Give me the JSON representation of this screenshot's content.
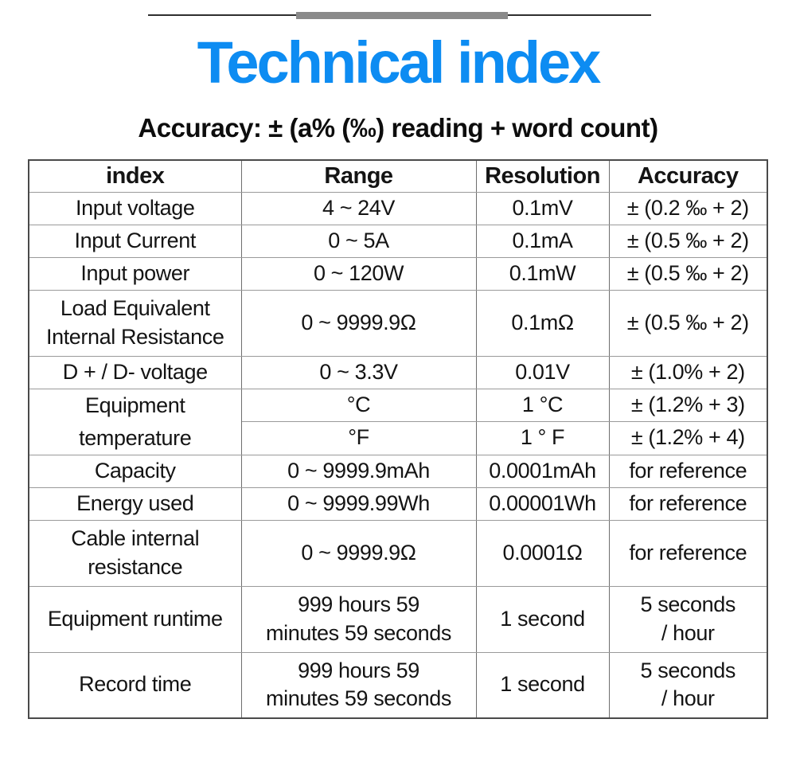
{
  "colors": {
    "title_blue": "#0d8cf2",
    "bar_gray": "#8a8a8a",
    "line_dark": "#2e2e2e"
  },
  "page": {
    "title": "Technical index",
    "subtitle": "Accuracy: ± (a% (‰) reading + word count)"
  },
  "table": {
    "headers": [
      "index",
      "Range",
      "Resolution",
      "Accuracy"
    ],
    "rows": [
      {
        "index": "Input voltage",
        "range": "4 ~ 24V",
        "resolution": "0.1mV",
        "accuracy": "± (0.2 ‰ + 2)"
      },
      {
        "index": "Input Current",
        "range": "0 ~ 5A",
        "resolution": "0.1mA",
        "accuracy": "± (0.5 ‰ + 2)"
      },
      {
        "index": "Input power",
        "range": "0 ~ 120W",
        "resolution": "0.1mW",
        "accuracy": "± (0.5 ‰ + 2)"
      },
      {
        "index": "Load Equivalent\nInternal Resistance",
        "range": "0 ~ 9999.9Ω",
        "resolution": "0.1mΩ",
        "accuracy": "± (0.5 ‰ + 2)"
      },
      {
        "index": "D + / D- voltage",
        "range": "0 ~ 3.3V",
        "resolution": "0.01V",
        "accuracy": "± (1.0% + 2)"
      },
      {
        "index": "Equipment\ntemperature",
        "range": "°C",
        "resolution": "1 °C",
        "accuracy": "± (1.2% + 3)"
      },
      {
        "range": "°F",
        "resolution": "1 ° F",
        "accuracy": "± (1.2% + 4)"
      },
      {
        "index": "Capacity",
        "range": "0 ~ 9999.9mAh",
        "resolution": "0.0001mAh",
        "accuracy": "for reference"
      },
      {
        "index": "Energy used",
        "range": "0 ~ 9999.99Wh",
        "resolution": "0.00001Wh",
        "accuracy": "for reference"
      },
      {
        "index": "Cable internal\nresistance",
        "range": "0 ~ 9999.9Ω",
        "resolution": "0.0001Ω",
        "accuracy": "for reference"
      },
      {
        "index": "Equipment runtime",
        "range": "999 hours 59\nminutes 59 seconds",
        "resolution": "1 second",
        "accuracy": "5 seconds\n/ hour"
      },
      {
        "index": "Record time",
        "range": "999 hours 59\nminutes 59 seconds",
        "resolution": "1 second",
        "accuracy": "5 seconds\n/ hour"
      }
    ]
  }
}
